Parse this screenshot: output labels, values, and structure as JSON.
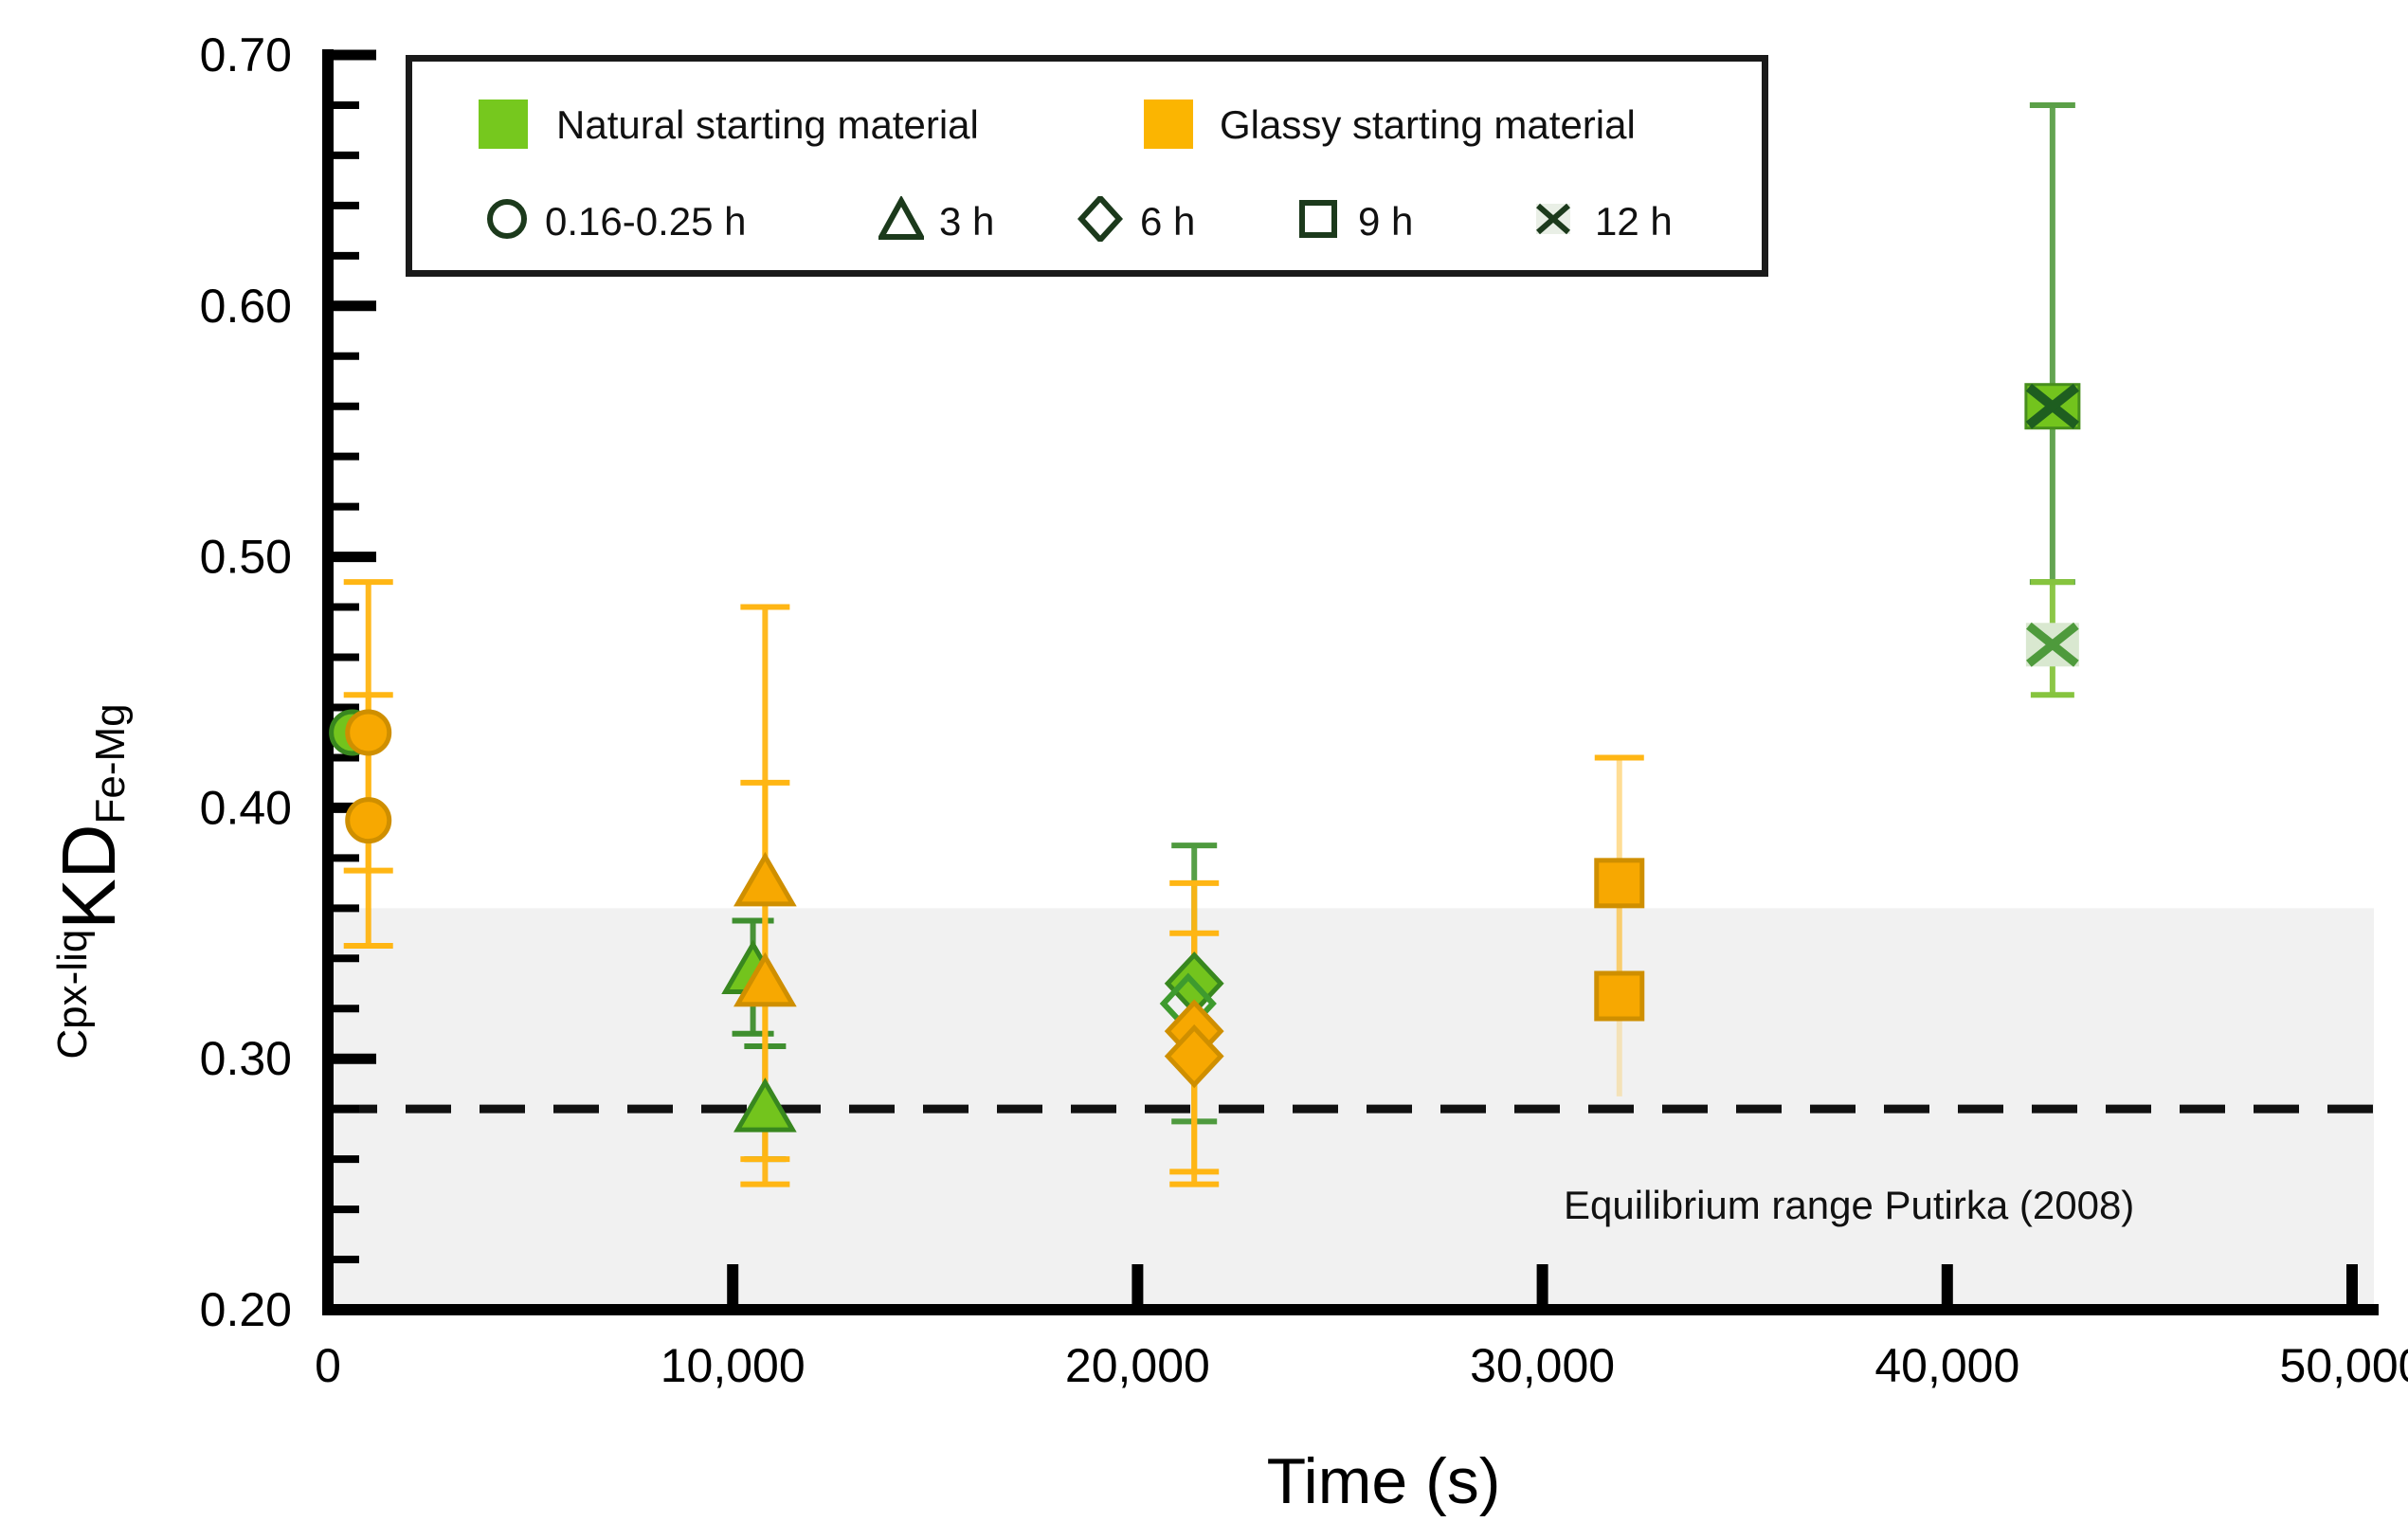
{
  "axes": {
    "x": {
      "title": "Time (s)",
      "min": 0,
      "max": 50000,
      "major_ticks": [
        0,
        10000,
        20000,
        30000,
        40000,
        50000
      ],
      "tick_labels": [
        "0",
        "10,000",
        "20,000",
        "30,000",
        "40,000",
        "50,000"
      ]
    },
    "y": {
      "label_prefix": "Cpx-liq",
      "label_main": "KD",
      "label_subscript": "Fe-Mg",
      "min": 0.2,
      "max": 0.7,
      "major_ticks": [
        0.2,
        0.3,
        0.4,
        0.5,
        0.6,
        0.7
      ],
      "tick_labels": [
        "0.20",
        "0.30",
        "0.40",
        "0.50",
        "0.60",
        "0.70"
      ],
      "minor_step": 0.02
    }
  },
  "equilibrium_band": {
    "y_from": 0.2,
    "y_to": 0.36,
    "color": "#f1f1f1",
    "label": "Equilibrium range Putirka (2008)"
  },
  "dashed_line": {
    "y": 0.28,
    "color": "#111111"
  },
  "legend": {
    "materials": [
      {
        "label": "Natural starting material",
        "color": "#76c81e"
      },
      {
        "label": "Glassy starting material",
        "color": "#fbb501"
      }
    ],
    "durations": [
      {
        "symbol": "circle",
        "label": "0.16-0.25 h"
      },
      {
        "symbol": "triangle",
        "label": "3 h"
      },
      {
        "symbol": "diamond",
        "label": "6 h"
      },
      {
        "symbol": "square",
        "label": "9 h"
      },
      {
        "symbol": "x",
        "label": "12 h"
      }
    ],
    "outline_color": "#1c3a1c"
  },
  "chart_data": {
    "type": "scatter",
    "x_unit": "seconds",
    "xlabel": "Time (s)",
    "ylabel": "Cpx-liq KD Fe-Mg",
    "xlim": [
      0,
      50000
    ],
    "ylim": [
      0.2,
      0.7
    ],
    "series": [
      {
        "name": "Natural starting material",
        "fill": "#73c41d",
        "stroke": "#38871f",
        "bar_color": "#4e9a3e",
        "points": [
          {
            "x": 600,
            "y": 0.43,
            "marker": "circle"
          },
          {
            "x": 10500,
            "y": 0.335,
            "marker": "triangle",
            "err_lo": 0.31,
            "err_hi": 0.355,
            "bar_color": "#3f8f2f",
            "cap_w": 44
          },
          {
            "x": 10800,
            "y": 0.28,
            "marker": "triangle",
            "err_lo": 0.26,
            "err_hi": 0.305,
            "bar_color": "#3f8f2f",
            "cap_w": 44
          },
          {
            "x": 21400,
            "y": 0.33,
            "marker": "diamond",
            "err_lo": 0.275,
            "err_hi": 0.385,
            "cap_w": 48
          },
          {
            "x": 21250,
            "y": 0.322,
            "marker": "diamond-hollow"
          },
          {
            "x": 42600,
            "y": 0.56,
            "marker": "x-dark",
            "err_lo": 0.49,
            "err_hi": 0.68,
            "bar_color": "#5ba048",
            "cap_w": 48
          },
          {
            "x": 42600,
            "y": 0.465,
            "marker": "x-light",
            "err_lo": 0.445,
            "err_hi": 0.49,
            "bar_color": "#86c43e",
            "cap_w": 46
          }
        ]
      },
      {
        "name": "Glassy starting material",
        "fill": "#f7a801",
        "stroke": "#cf8f00",
        "bar_color": "#ffb614",
        "points": [
          {
            "x": 1000,
            "y": 0.43,
            "marker": "circle",
            "err_lo": 0.375,
            "err_hi": 0.49
          },
          {
            "x": 1000,
            "y": 0.395,
            "marker": "circle",
            "err_lo": 0.345,
            "err_hi": 0.445
          },
          {
            "x": 10800,
            "y": 0.37,
            "marker": "triangle",
            "err_lo": 0.26,
            "err_hi": 0.48
          },
          {
            "x": 10800,
            "y": 0.33,
            "marker": "triangle",
            "err_lo": 0.25,
            "err_hi": 0.41
          },
          {
            "x": 21400,
            "y": 0.311,
            "marker": "diamond",
            "err_lo": 0.255,
            "err_hi": 0.37
          },
          {
            "x": 21400,
            "y": 0.301,
            "marker": "diamond",
            "err_lo": 0.25,
            "err_hi": 0.35
          },
          {
            "x": 31900,
            "y": 0.37,
            "marker": "square",
            "err_lo": 0.325,
            "err_hi": 0.42,
            "bar_opacity": 0.45,
            "cap_lo": false
          },
          {
            "x": 31900,
            "y": 0.325,
            "marker": "square",
            "err_lo": 0.285,
            "err_hi": 0.37,
            "bar_opacity": 0.25,
            "cap_lo": false,
            "cap_hi": false
          }
        ]
      }
    ]
  }
}
